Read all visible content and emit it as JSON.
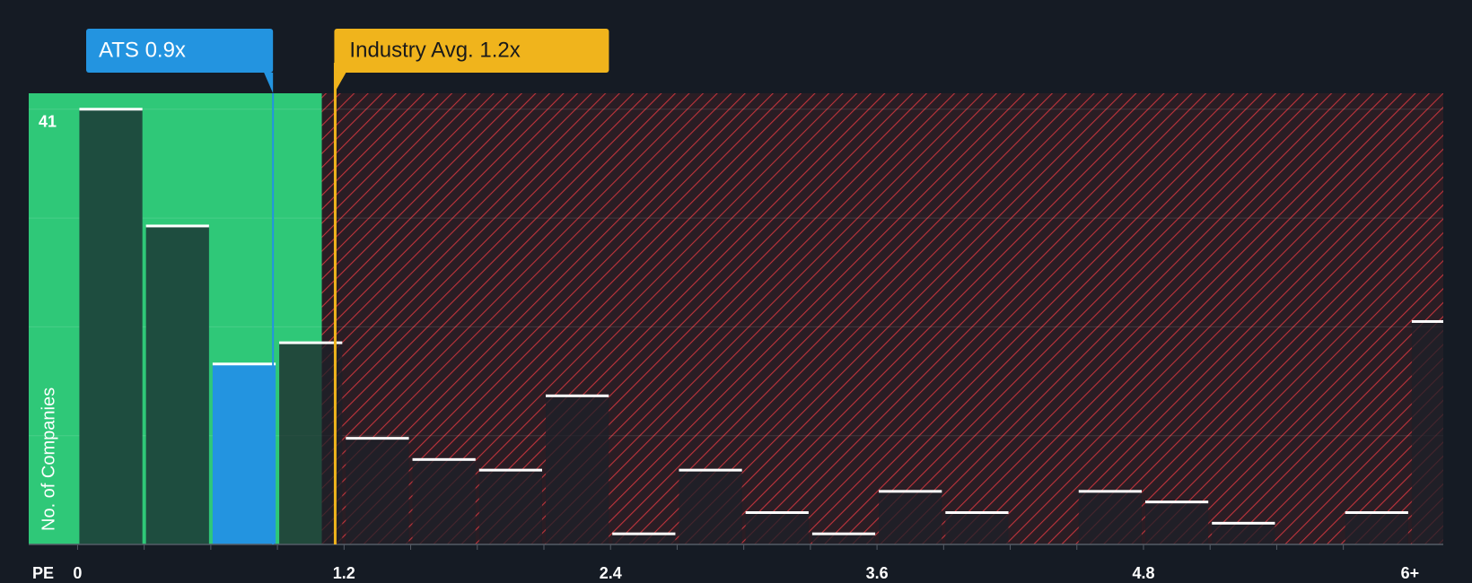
{
  "chart_data": {
    "type": "histogram",
    "bins": [
      0,
      0.3,
      0.6,
      0.9,
      1.2,
      1.5,
      1.8,
      2.1,
      2.4,
      2.7,
      3.0,
      3.3,
      3.6,
      3.9,
      4.2,
      4.5,
      4.8,
      5.1,
      5.4,
      5.7,
      6.0
    ],
    "values": [
      41,
      30,
      17,
      19,
      10,
      8,
      7,
      14,
      1,
      7,
      3,
      1,
      5,
      3,
      0,
      5,
      4,
      2,
      0,
      3
    ],
    "overflow_value": 21,
    "xlim": [
      -0.22,
      6.15
    ],
    "ylim": [
      0,
      42.5
    ],
    "xticks": [
      0,
      1.2,
      2.4,
      3.6,
      4.8,
      {
        "value": 6,
        "label": "6+"
      }
    ],
    "yticks": [
      41
    ],
    "grid_lines": [
      10.25,
      20.5,
      30.75,
      41
    ],
    "x_label": "PE",
    "y_label": "No. of Companies",
    "company": {
      "label": "ATS 0.9x",
      "value": 0.88,
      "color": "#2394e0"
    },
    "industry": {
      "label": "Industry Avg. 1.2x",
      "value": 1.16,
      "color": "#f0b41c"
    },
    "fair_max": 1.1
  }
}
